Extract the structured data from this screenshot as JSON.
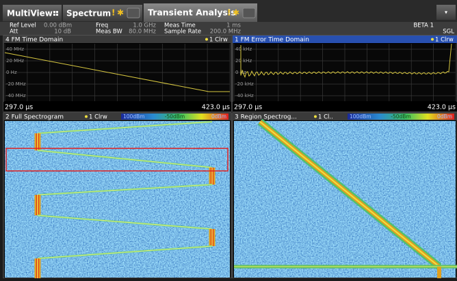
{
  "tabs": [
    {
      "label": "MultiView"
    },
    {
      "label": "Spectrum"
    },
    {
      "label": "Transient Analysis"
    }
  ],
  "status": {
    "ref_level_label": "Ref Level",
    "ref_level": "0.00 dBm",
    "att_label": "Att",
    "att": "10 dB",
    "freq_label": "Freq",
    "freq": "1.0 GHz",
    "meas_bw_label": "Meas BW",
    "meas_bw": "80.0 MHz",
    "meas_time_label": "Meas Time",
    "meas_time": "1 ms",
    "sample_rate_label": "Sample Rate",
    "sample_rate": "200.0 MHz",
    "mode": "BETA 1",
    "sweep": "SGL"
  },
  "windows": [
    {
      "title": "4 FM Time Domain",
      "trace": "1 Clrw",
      "yticks": [
        "40 MHz",
        "20 MHz",
        "0 Hz",
        "-20 MHz",
        "-40 MHz"
      ],
      "x_start": "297.0 µs",
      "x_end": "423.0 µs"
    },
    {
      "title": "1 FM Error Time Domain",
      "trace": "1 Clrw",
      "yticks": [
        "40 kHz",
        "20 kHz",
        "0 Hz",
        "-20 kHz",
        "-40 kHz"
      ],
      "x_start": "297.0 µs",
      "x_end": "423.0 µs"
    },
    {
      "title": "2 Full Spectrogram",
      "trace": "1 Clrw",
      "scale": [
        "100dBm",
        "-50dBm",
        "0dBm"
      ]
    },
    {
      "title": "3 Region Spectrog...",
      "trace": "1 Cl..",
      "scale": [
        "100dBm",
        "-50dBm",
        "0dBm"
      ]
    }
  ]
}
